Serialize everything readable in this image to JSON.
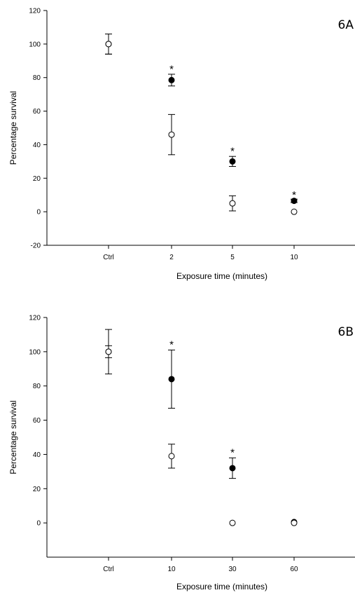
{
  "chart_data": [
    {
      "type": "scatter",
      "panel_label": "6A",
      "xlabel": "Exposure time (minutes)",
      "ylabel": "Percentage survival",
      "categories": [
        "Ctrl",
        "2",
        "5",
        "10"
      ],
      "ylim": [
        -20,
        120
      ],
      "yticks": [
        -20,
        0,
        20,
        40,
        60,
        80,
        100,
        120
      ],
      "grid": false,
      "series": [
        {
          "marker": "filled-circle",
          "values": [
            100,
            78.5,
            30,
            6.5
          ],
          "errors": [
            6,
            3.5,
            3,
            1
          ]
        },
        {
          "marker": "open-circle",
          "values": [
            100,
            46,
            5,
            0
          ],
          "errors": [
            6,
            12,
            4.5,
            0.5
          ]
        }
      ],
      "annotations": [
        {
          "text": "*",
          "category": "2",
          "y": 86
        },
        {
          "text": "*",
          "category": "5",
          "y": 37
        },
        {
          "text": "*",
          "category": "10",
          "y": 11
        }
      ]
    },
    {
      "type": "scatter",
      "panel_label": "6B",
      "xlabel": "Exposure time (minutes)",
      "ylabel": "Percentage survival",
      "categories": [
        "Ctrl",
        "10",
        "30",
        "60"
      ],
      "ylim": [
        -20,
        120
      ],
      "yticks": [
        0,
        20,
        40,
        60,
        80,
        100,
        120
      ],
      "grid": false,
      "series": [
        {
          "marker": "filled-circle",
          "values": [
            100,
            84,
            32,
            0.5
          ],
          "errors": [
            13,
            17,
            6,
            0.8
          ]
        },
        {
          "marker": "open-circle",
          "values": [
            100,
            39,
            0,
            0
          ],
          "errors": [
            3.5,
            7,
            0.5,
            0.5
          ]
        }
      ],
      "annotations": [
        {
          "text": "*",
          "category": "10",
          "y": 105
        },
        {
          "text": "*",
          "category": "30",
          "y": 42
        }
      ]
    }
  ]
}
